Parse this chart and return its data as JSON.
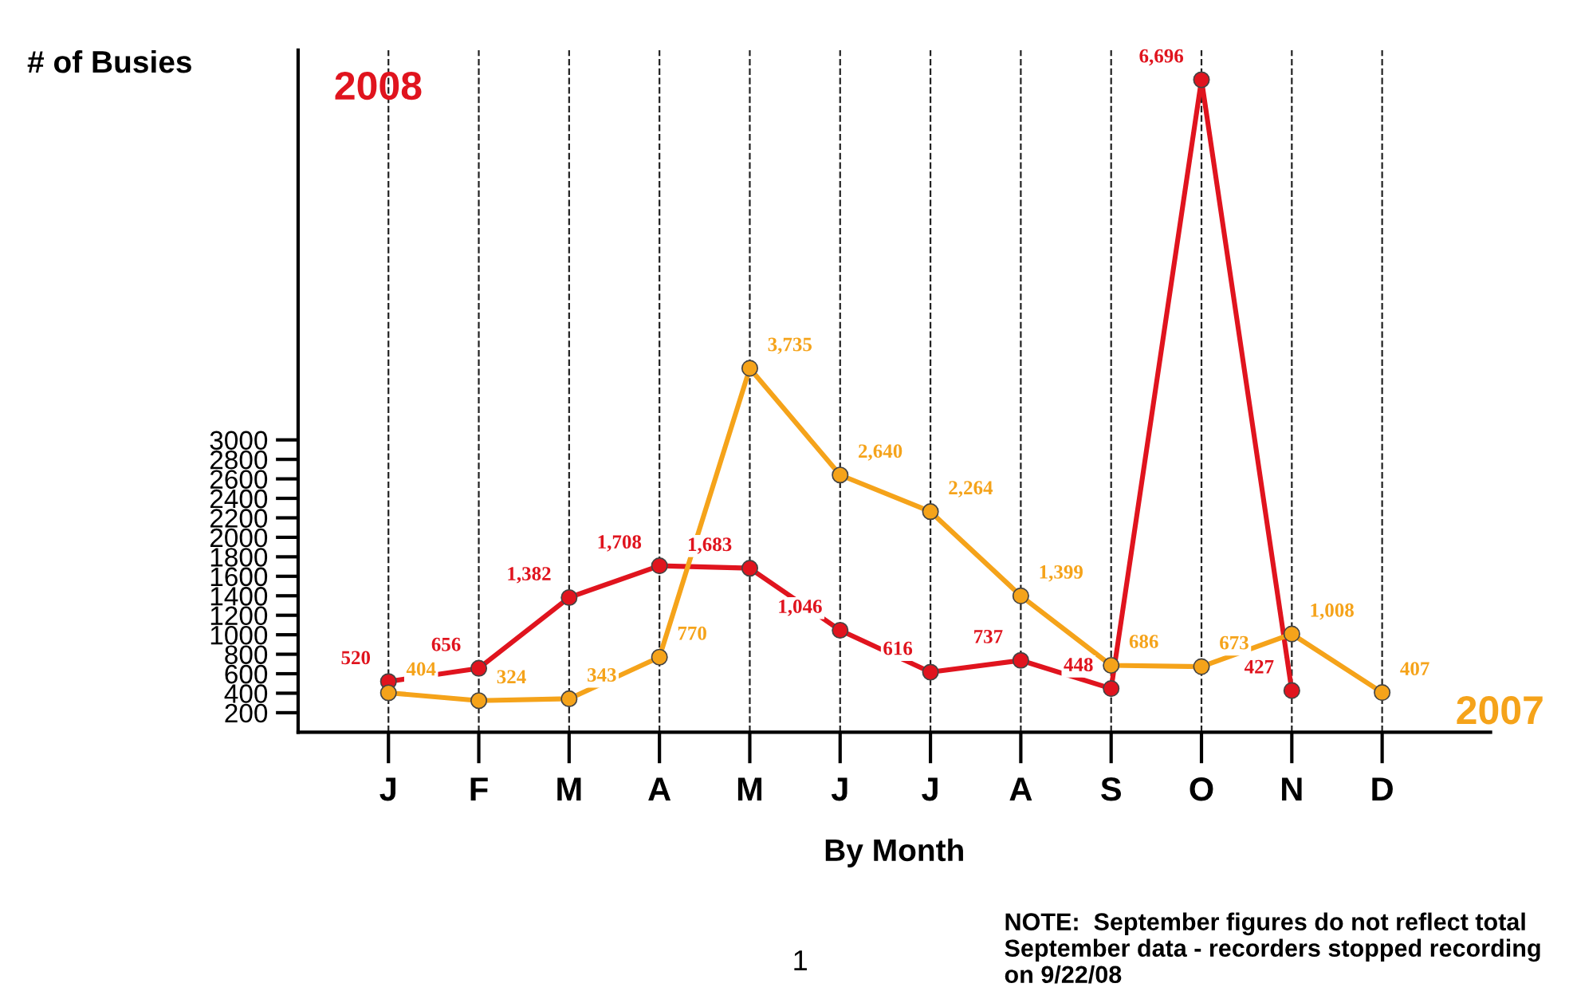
{
  "chart_data": {
    "type": "line",
    "xlabel": "By Month",
    "ylabel": "# of Busies",
    "categories": [
      "J",
      "F",
      "M",
      "A",
      "M",
      "J",
      "J",
      "A",
      "S",
      "O",
      "N",
      "D"
    ],
    "series": [
      {
        "name": "2008",
        "color": "#e0141e",
        "values": [
          520,
          656,
          1382,
          1708,
          1683,
          1046,
          616,
          737,
          448,
          6696,
          427,
          null
        ],
        "value_labels": [
          "520",
          "656",
          "1,382",
          "1,708",
          "1,683",
          "1,046",
          "616",
          "737",
          "448",
          "6,696",
          "427",
          null
        ]
      },
      {
        "name": "2007",
        "color": "#f5a31a",
        "values": [
          404,
          324,
          343,
          770,
          3735,
          2640,
          2264,
          1399,
          686,
          673,
          1008,
          407
        ],
        "value_labels": [
          "404",
          "324",
          "343",
          "770",
          "3,735",
          "2,640",
          "2,264",
          "1,399",
          "686",
          "673",
          "1,008",
          "407"
        ]
      }
    ],
    "ylim": [
      0,
      7000
    ],
    "yticks": [
      200,
      400,
      600,
      800,
      1000,
      1200,
      1400,
      1600,
      1800,
      2000,
      2200,
      2400,
      2600,
      2800,
      3000
    ],
    "grid": "x",
    "marker": "circle",
    "line_style": "solid",
    "annotations": [
      "1",
      "NOTE:  September figures do not reflect total September data - recorders stopped recording on 9/22/08"
    ]
  }
}
